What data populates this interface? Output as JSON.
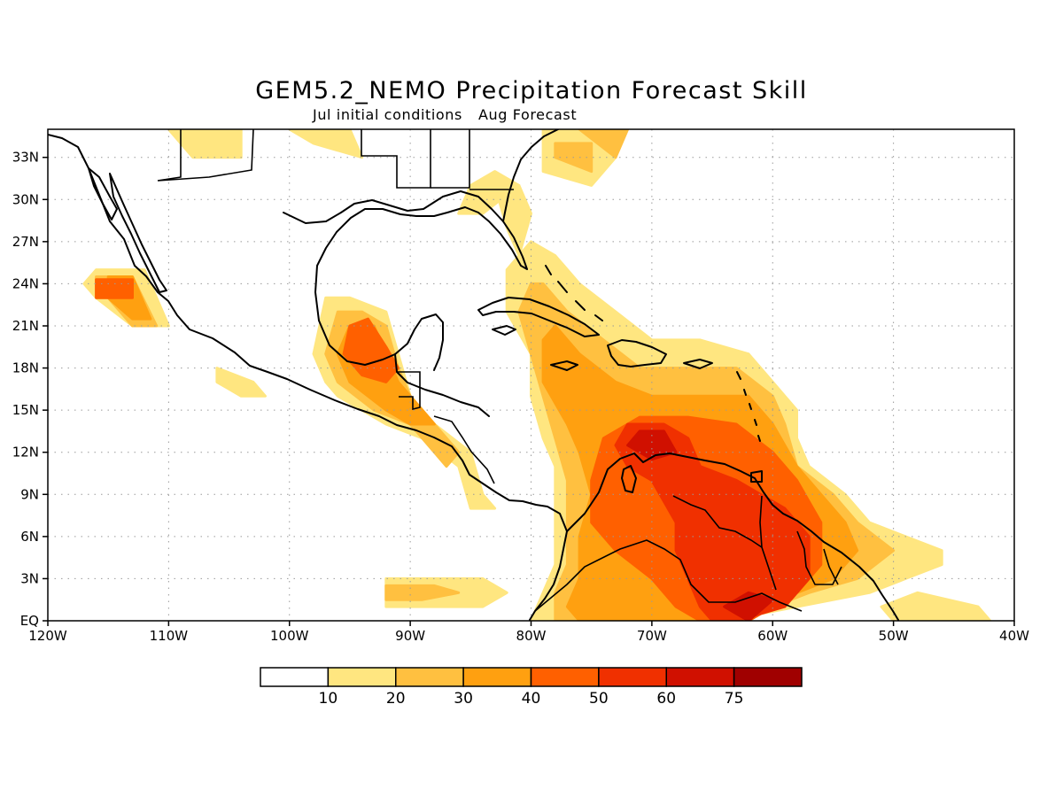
{
  "title": "GEM5.2_NEMO Precipitation Forecast Skill",
  "subtitle_left": "Jul initial conditions",
  "subtitle_right": "Aug Forecast",
  "map": {
    "lon_range": [
      -120,
      -40
    ],
    "lat_range": [
      0,
      35
    ],
    "lon_ticks": [
      {
        "value": -120,
        "label": "120W"
      },
      {
        "value": -110,
        "label": "110W"
      },
      {
        "value": -100,
        "label": "100W"
      },
      {
        "value": -90,
        "label": "90W"
      },
      {
        "value": -80,
        "label": "80W"
      },
      {
        "value": -70,
        "label": "70W"
      },
      {
        "value": -60,
        "label": "60W"
      },
      {
        "value": -50,
        "label": "50W"
      },
      {
        "value": -40,
        "label": "40W"
      }
    ],
    "lat_ticks": [
      {
        "value": 0,
        "label": "EQ"
      },
      {
        "value": 3,
        "label": "3N"
      },
      {
        "value": 6,
        "label": "6N"
      },
      {
        "value": 9,
        "label": "9N"
      },
      {
        "value": 12,
        "label": "12N"
      },
      {
        "value": 15,
        "label": "15N"
      },
      {
        "value": 18,
        "label": "18N"
      },
      {
        "value": 21,
        "label": "21N"
      },
      {
        "value": 24,
        "label": "24N"
      },
      {
        "value": 27,
        "label": "27N"
      },
      {
        "value": 30,
        "label": "30N"
      },
      {
        "value": 33,
        "label": "33N"
      }
    ],
    "grid": true
  },
  "colorbar": {
    "labels": [
      "10",
      "20",
      "30",
      "40",
      "50",
      "60",
      "75"
    ],
    "colors": [
      "#ffffff",
      "#ffe680",
      "#ffc040",
      "#ffa010",
      "#ff6000",
      "#f03000",
      "#d01000",
      "#a00000"
    ]
  },
  "skill_regions": [
    {
      "level": 1,
      "polys": [
        [
          [
            -64,
            0
          ],
          [
            -58,
            1
          ],
          [
            -52,
            2
          ],
          [
            -49,
            3
          ],
          [
            -46,
            4
          ],
          [
            -46,
            5
          ],
          [
            -49,
            6
          ],
          [
            -52,
            7
          ],
          [
            -54,
            9
          ],
          [
            -57,
            11
          ],
          [
            -58,
            13
          ],
          [
            -58,
            15
          ],
          [
            -60,
            17
          ],
          [
            -62,
            19
          ],
          [
            -66,
            20
          ],
          [
            -70,
            20
          ],
          [
            -73,
            22
          ],
          [
            -76,
            24
          ],
          [
            -78,
            26
          ],
          [
            -80,
            27
          ],
          [
            -82,
            25
          ],
          [
            -82,
            22
          ],
          [
            -80,
            19
          ],
          [
            -80,
            16
          ],
          [
            -79,
            13
          ],
          [
            -78,
            11
          ],
          [
            -78,
            9
          ],
          [
            -78,
            7
          ],
          [
            -78,
            4
          ],
          [
            -79,
            2
          ],
          [
            -80,
            0
          ]
        ],
        [
          [
            -79,
            35
          ],
          [
            -74,
            35
          ],
          [
            -73,
            33
          ],
          [
            -75,
            31
          ],
          [
            -79,
            32
          ]
        ],
        [
          [
            -81,
            26
          ],
          [
            -80,
            29
          ],
          [
            -81,
            31
          ],
          [
            -83,
            31
          ],
          [
            -82,
            28
          ]
        ],
        [
          [
            -86,
            29
          ],
          [
            -85,
            31
          ],
          [
            -83,
            32
          ],
          [
            -81,
            31
          ],
          [
            -84,
            29
          ]
        ],
        [
          [
            -98,
            19
          ],
          [
            -97,
            23
          ],
          [
            -95,
            23
          ],
          [
            -92,
            22
          ],
          [
            -91,
            19
          ],
          [
            -90,
            16
          ],
          [
            -88,
            14
          ],
          [
            -85,
            12
          ],
          [
            -84,
            9
          ],
          [
            -83,
            8
          ],
          [
            -85,
            8
          ],
          [
            -86,
            11
          ],
          [
            -89,
            13
          ],
          [
            -92,
            14
          ],
          [
            -94,
            15
          ],
          [
            -96,
            16
          ],
          [
            -97,
            17
          ]
        ],
        [
          [
            -117,
            24
          ],
          [
            -116,
            25
          ],
          [
            -112,
            25
          ],
          [
            -110,
            21
          ],
          [
            -113,
            21
          ],
          [
            -116,
            23
          ]
        ],
        [
          [
            -106,
            18
          ],
          [
            -103,
            17
          ],
          [
            -102,
            16
          ],
          [
            -104,
            16
          ],
          [
            -106,
            17
          ]
        ],
        [
          [
            -92,
            3
          ],
          [
            -88,
            3
          ],
          [
            -84,
            3
          ],
          [
            -82,
            2
          ],
          [
            -84,
            1
          ],
          [
            -88,
            1
          ],
          [
            -92,
            1
          ]
        ],
        [
          [
            -51,
            1
          ],
          [
            -48,
            2
          ],
          [
            -43,
            1
          ],
          [
            -42,
            0
          ],
          [
            -50,
            0
          ]
        ],
        [
          [
            -100,
            35
          ],
          [
            -95,
            35
          ],
          [
            -94,
            33
          ],
          [
            -98,
            34
          ]
        ],
        [
          [
            -110,
            35
          ],
          [
            -104,
            35
          ],
          [
            -104,
            33
          ],
          [
            -108,
            33
          ]
        ]
      ]
    },
    {
      "level": 2,
      "polys": [
        [
          [
            -63,
            0
          ],
          [
            -57,
            2
          ],
          [
            -53,
            3
          ],
          [
            -50,
            5
          ],
          [
            -53,
            7
          ],
          [
            -55,
            9
          ],
          [
            -58,
            11
          ],
          [
            -59,
            14
          ],
          [
            -60,
            16
          ],
          [
            -63,
            18
          ],
          [
            -67,
            18
          ],
          [
            -71,
            18
          ],
          [
            -74,
            20
          ],
          [
            -77,
            22
          ],
          [
            -79,
            24
          ],
          [
            -80,
            24
          ],
          [
            -81,
            22
          ],
          [
            -80,
            19
          ],
          [
            -79,
            16
          ],
          [
            -78,
            13
          ],
          [
            -77,
            10
          ],
          [
            -77,
            6
          ],
          [
            -77,
            4
          ],
          [
            -78,
            2
          ],
          [
            -78,
            0
          ]
        ],
        [
          [
            -78,
            34
          ],
          [
            -75,
            34
          ],
          [
            -75,
            32
          ],
          [
            -78,
            33
          ]
        ],
        [
          [
            -97,
            19
          ],
          [
            -96,
            22
          ],
          [
            -94,
            22
          ],
          [
            -92,
            21
          ],
          [
            -91,
            18
          ],
          [
            -90,
            16
          ],
          [
            -88,
            14
          ],
          [
            -86,
            12
          ],
          [
            -87,
            11
          ],
          [
            -90,
            14
          ],
          [
            -93,
            15
          ],
          [
            -96,
            17
          ]
        ],
        [
          [
            -116,
            23
          ],
          [
            -116,
            24.5
          ],
          [
            -113,
            24.5
          ],
          [
            -111,
            21
          ],
          [
            -113,
            21
          ],
          [
            -115,
            23
          ]
        ],
        [
          [
            -92,
            2.5
          ],
          [
            -88,
            2.5
          ],
          [
            -86,
            2
          ],
          [
            -89,
            1.5
          ],
          [
            -92,
            1.5
          ]
        ],
        [
          [
            -73,
            33
          ],
          [
            -72,
            35
          ],
          [
            -76,
            35
          ]
        ]
      ]
    },
    {
      "level": 3,
      "polys": [
        [
          [
            -62,
            0
          ],
          [
            -58,
            2
          ],
          [
            -55,
            3
          ],
          [
            -53,
            5
          ],
          [
            -54,
            7
          ],
          [
            -56,
            9
          ],
          [
            -58,
            11
          ],
          [
            -60,
            14
          ],
          [
            -62,
            16
          ],
          [
            -66,
            16
          ],
          [
            -70,
            16
          ],
          [
            -73,
            17
          ],
          [
            -76,
            19
          ],
          [
            -78,
            21
          ],
          [
            -79,
            20
          ],
          [
            -79,
            17
          ],
          [
            -77,
            14
          ],
          [
            -76,
            12
          ],
          [
            -75,
            9
          ],
          [
            -76,
            6
          ],
          [
            -76,
            3
          ],
          [
            -77,
            1
          ],
          [
            -76,
            0
          ]
        ],
        [
          [
            -96,
            19
          ],
          [
            -95,
            21
          ],
          [
            -93,
            21
          ],
          [
            -92,
            19
          ],
          [
            -91,
            17
          ],
          [
            -89,
            15
          ],
          [
            -88,
            14
          ],
          [
            -90,
            14
          ],
          [
            -92,
            15
          ],
          [
            -95,
            17
          ]
        ],
        [
          [
            -115,
            23
          ],
          [
            -115,
            24.5
          ],
          [
            -113,
            24.5
          ],
          [
            -111.5,
            21.5
          ],
          [
            -113,
            21.5
          ]
        ]
      ]
    },
    {
      "level": 4,
      "polys": [
        [
          [
            -62,
            0
          ],
          [
            -58,
            2
          ],
          [
            -56,
            4
          ],
          [
            -56,
            7
          ],
          [
            -58,
            10
          ],
          [
            -60,
            12
          ],
          [
            -63,
            14
          ],
          [
            -67,
            14.5
          ],
          [
            -71,
            14.5
          ],
          [
            -74,
            13
          ],
          [
            -75,
            10
          ],
          [
            -75,
            7
          ],
          [
            -73,
            5
          ],
          [
            -70,
            3
          ],
          [
            -68,
            1
          ],
          [
            -66,
            0
          ]
        ],
        [
          [
            -95.5,
            19
          ],
          [
            -95,
            21
          ],
          [
            -93.5,
            21.5
          ],
          [
            -92,
            19.5
          ],
          [
            -91,
            18
          ],
          [
            -92,
            17
          ],
          [
            -94,
            17.5
          ]
        ],
        [
          [
            -116,
            23
          ],
          [
            -116,
            24.3
          ],
          [
            -113,
            24.3
          ],
          [
            -113,
            23
          ]
        ]
      ]
    },
    {
      "level": 5,
      "polys": [
        [
          [
            -63,
            0
          ],
          [
            -59,
            1
          ],
          [
            -57,
            3
          ],
          [
            -57,
            6
          ],
          [
            -59,
            8
          ],
          [
            -61,
            9
          ],
          [
            -63,
            10
          ],
          [
            -66,
            11
          ],
          [
            -67,
            13
          ],
          [
            -69,
            14
          ],
          [
            -72,
            14
          ],
          [
            -73,
            12.5
          ],
          [
            -72,
            11
          ],
          [
            -70,
            10
          ],
          [
            -68,
            7
          ],
          [
            -68,
            5
          ],
          [
            -67,
            3
          ],
          [
            -66,
            1
          ],
          [
            -65,
            0
          ]
        ]
      ]
    },
    {
      "level": 6,
      "polys": [
        [
          [
            -71,
            13.5
          ],
          [
            -69,
            13.5
          ],
          [
            -68,
            12
          ],
          [
            -70,
            11.5
          ],
          [
            -72,
            12.5
          ]
        ],
        [
          [
            -62,
            0
          ],
          [
            -60,
            1.5
          ],
          [
            -62,
            2
          ],
          [
            -64,
            1
          ]
        ]
      ]
    }
  ]
}
